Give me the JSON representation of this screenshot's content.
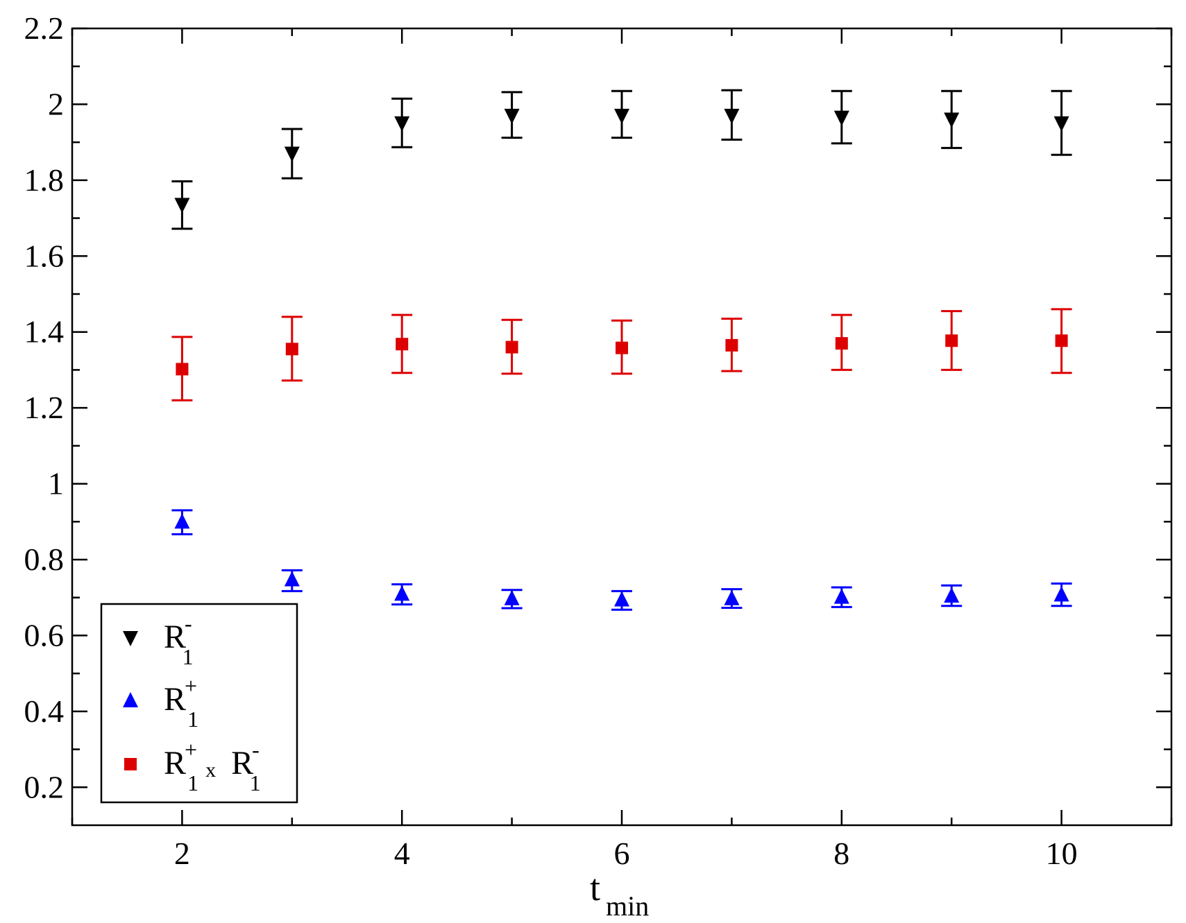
{
  "chart_data": {
    "type": "scatter",
    "title": "",
    "xlabel": {
      "main": "t",
      "subscript": "min"
    },
    "ylabel": "",
    "xlim": [
      1,
      11
    ],
    "ylim": [
      0.1,
      2.2
    ],
    "x_ticks": [
      2,
      4,
      6,
      8,
      10
    ],
    "x_tick_labels": [
      "2",
      "4",
      "6",
      "8",
      "10"
    ],
    "y_ticks": [
      0.2,
      0.4,
      0.6,
      0.8,
      1.0,
      1.2,
      1.4,
      1.6,
      1.8,
      2.0,
      2.2
    ],
    "y_tick_labels": [
      "0.2",
      "0.4",
      "0.6",
      "0.8",
      "1",
      "1.2",
      "1.4",
      "1.6",
      "1.8",
      "2",
      "2.2"
    ],
    "grid": false,
    "legend_position": "bottom-left",
    "series": [
      {
        "name": "R1-",
        "legend": {
          "base": "R",
          "sub": "1",
          "sup": "-"
        },
        "marker": "triangle-down",
        "color": "#000000",
        "x": [
          2,
          3,
          4,
          5,
          6,
          7,
          8,
          9,
          10
        ],
        "y": [
          1.735,
          1.87,
          1.95,
          1.97,
          1.97,
          1.97,
          1.965,
          1.96,
          1.95
        ],
        "err_low": [
          1.672,
          1.805,
          1.887,
          1.912,
          1.912,
          1.907,
          1.897,
          1.885,
          1.867
        ],
        "err_high": [
          1.797,
          1.935,
          2.015,
          2.032,
          2.035,
          2.037,
          2.035,
          2.035,
          2.035
        ]
      },
      {
        "name": "R1+",
        "legend": {
          "base": "R",
          "sub": "1",
          "sup": "+"
        },
        "marker": "triangle-up",
        "color": "#0000ff",
        "x": [
          2,
          3,
          4,
          5,
          6,
          7,
          8,
          9,
          10
        ],
        "y": [
          0.9,
          0.748,
          0.71,
          0.698,
          0.695,
          0.698,
          0.702,
          0.705,
          0.708
        ],
        "err_low": [
          0.867,
          0.717,
          0.682,
          0.672,
          0.668,
          0.673,
          0.675,
          0.678,
          0.678
        ],
        "err_high": [
          0.93,
          0.772,
          0.735,
          0.72,
          0.717,
          0.722,
          0.727,
          0.732,
          0.737
        ]
      },
      {
        "name": "R1+ x R1-",
        "legend": {
          "base": "R",
          "sub": "1",
          "sup": "+",
          "joiner": "x",
          "base2": "R",
          "sub2": "1",
          "sup2": "-"
        },
        "marker": "square",
        "color": "#dd0000",
        "x": [
          2,
          3,
          4,
          5,
          6,
          7,
          8,
          9,
          10
        ],
        "y": [
          1.302,
          1.355,
          1.368,
          1.36,
          1.358,
          1.365,
          1.37,
          1.377,
          1.377
        ],
        "err_low": [
          1.22,
          1.272,
          1.292,
          1.29,
          1.29,
          1.297,
          1.3,
          1.3,
          1.292
        ],
        "err_high": [
          1.387,
          1.44,
          1.445,
          1.432,
          1.43,
          1.435,
          1.445,
          1.455,
          1.46
        ]
      }
    ]
  }
}
